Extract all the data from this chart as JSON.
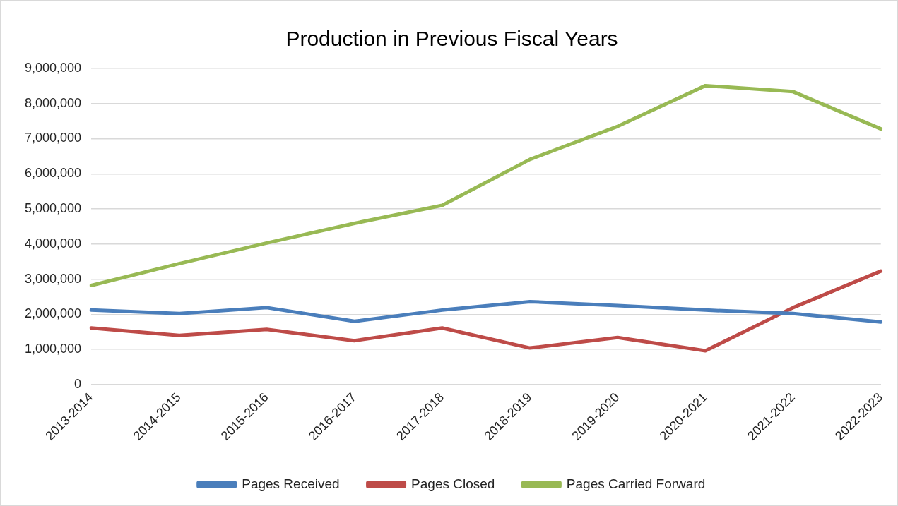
{
  "chart_data": {
    "type": "line",
    "title": "Production in Previous Fiscal Years",
    "categories": [
      "2013-2014",
      "2014-2015",
      "2015-2016",
      "2016-2017",
      "2017-2018",
      "2018-2019",
      "2019-2020",
      "2020-2021",
      "2021-2022",
      "2022-2023"
    ],
    "series": [
      {
        "name": "Pages Received",
        "color": "#4a7ebb",
        "values": [
          2120000,
          2020000,
          2190000,
          1800000,
          2120000,
          2360000,
          2250000,
          2120000,
          2020000,
          1780000
        ]
      },
      {
        "name": "Pages Closed",
        "color": "#be4b48",
        "values": [
          1610000,
          1400000,
          1570000,
          1250000,
          1610000,
          1040000,
          1340000,
          960000,
          2190000,
          3230000
        ]
      },
      {
        "name": "Pages Carried Forward",
        "color": "#98b954",
        "values": [
          2820000,
          3440000,
          4030000,
          4590000,
          5100000,
          6410000,
          7350000,
          8510000,
          8340000,
          7280000
        ]
      }
    ],
    "ylim": [
      0,
      9000000
    ],
    "yticks": [
      0,
      {
        "value": 1000000,
        "label": "1,000,000"
      },
      {
        "value": 2000000,
        "label": "2,000,000"
      },
      {
        "value": 3000000,
        "label": "3,000,000"
      },
      {
        "value": 4000000,
        "label": "4,000,000"
      },
      {
        "value": 5000000,
        "label": "5,000,000"
      },
      {
        "value": 6000000,
        "label": "6,000,000"
      },
      {
        "value": 7000000,
        "label": "7,000,000"
      },
      {
        "value": 8000000,
        "label": "8,000,000"
      },
      {
        "value": 9000000,
        "label": "9,000,000"
      }
    ],
    "grid": "y",
    "legend": "bottom",
    "marker": "none",
    "line_style": "solid"
  }
}
